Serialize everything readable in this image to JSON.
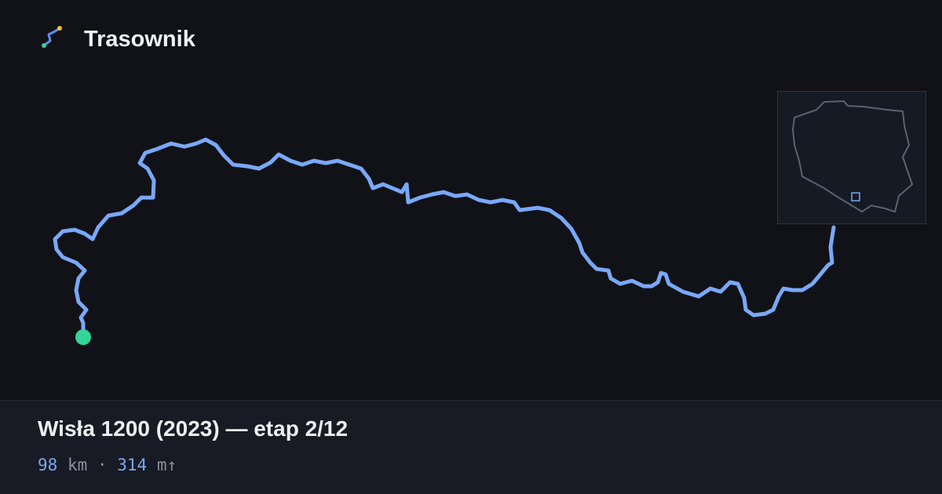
{
  "brand": "Trasownik",
  "title": "Wisła 1200 (2023) — etap 2/12",
  "stats": {
    "distance": {
      "value": 98,
      "unit": "km"
    },
    "separator": "·",
    "elevation": {
      "value": 314,
      "unit": "m↑"
    }
  }
}
